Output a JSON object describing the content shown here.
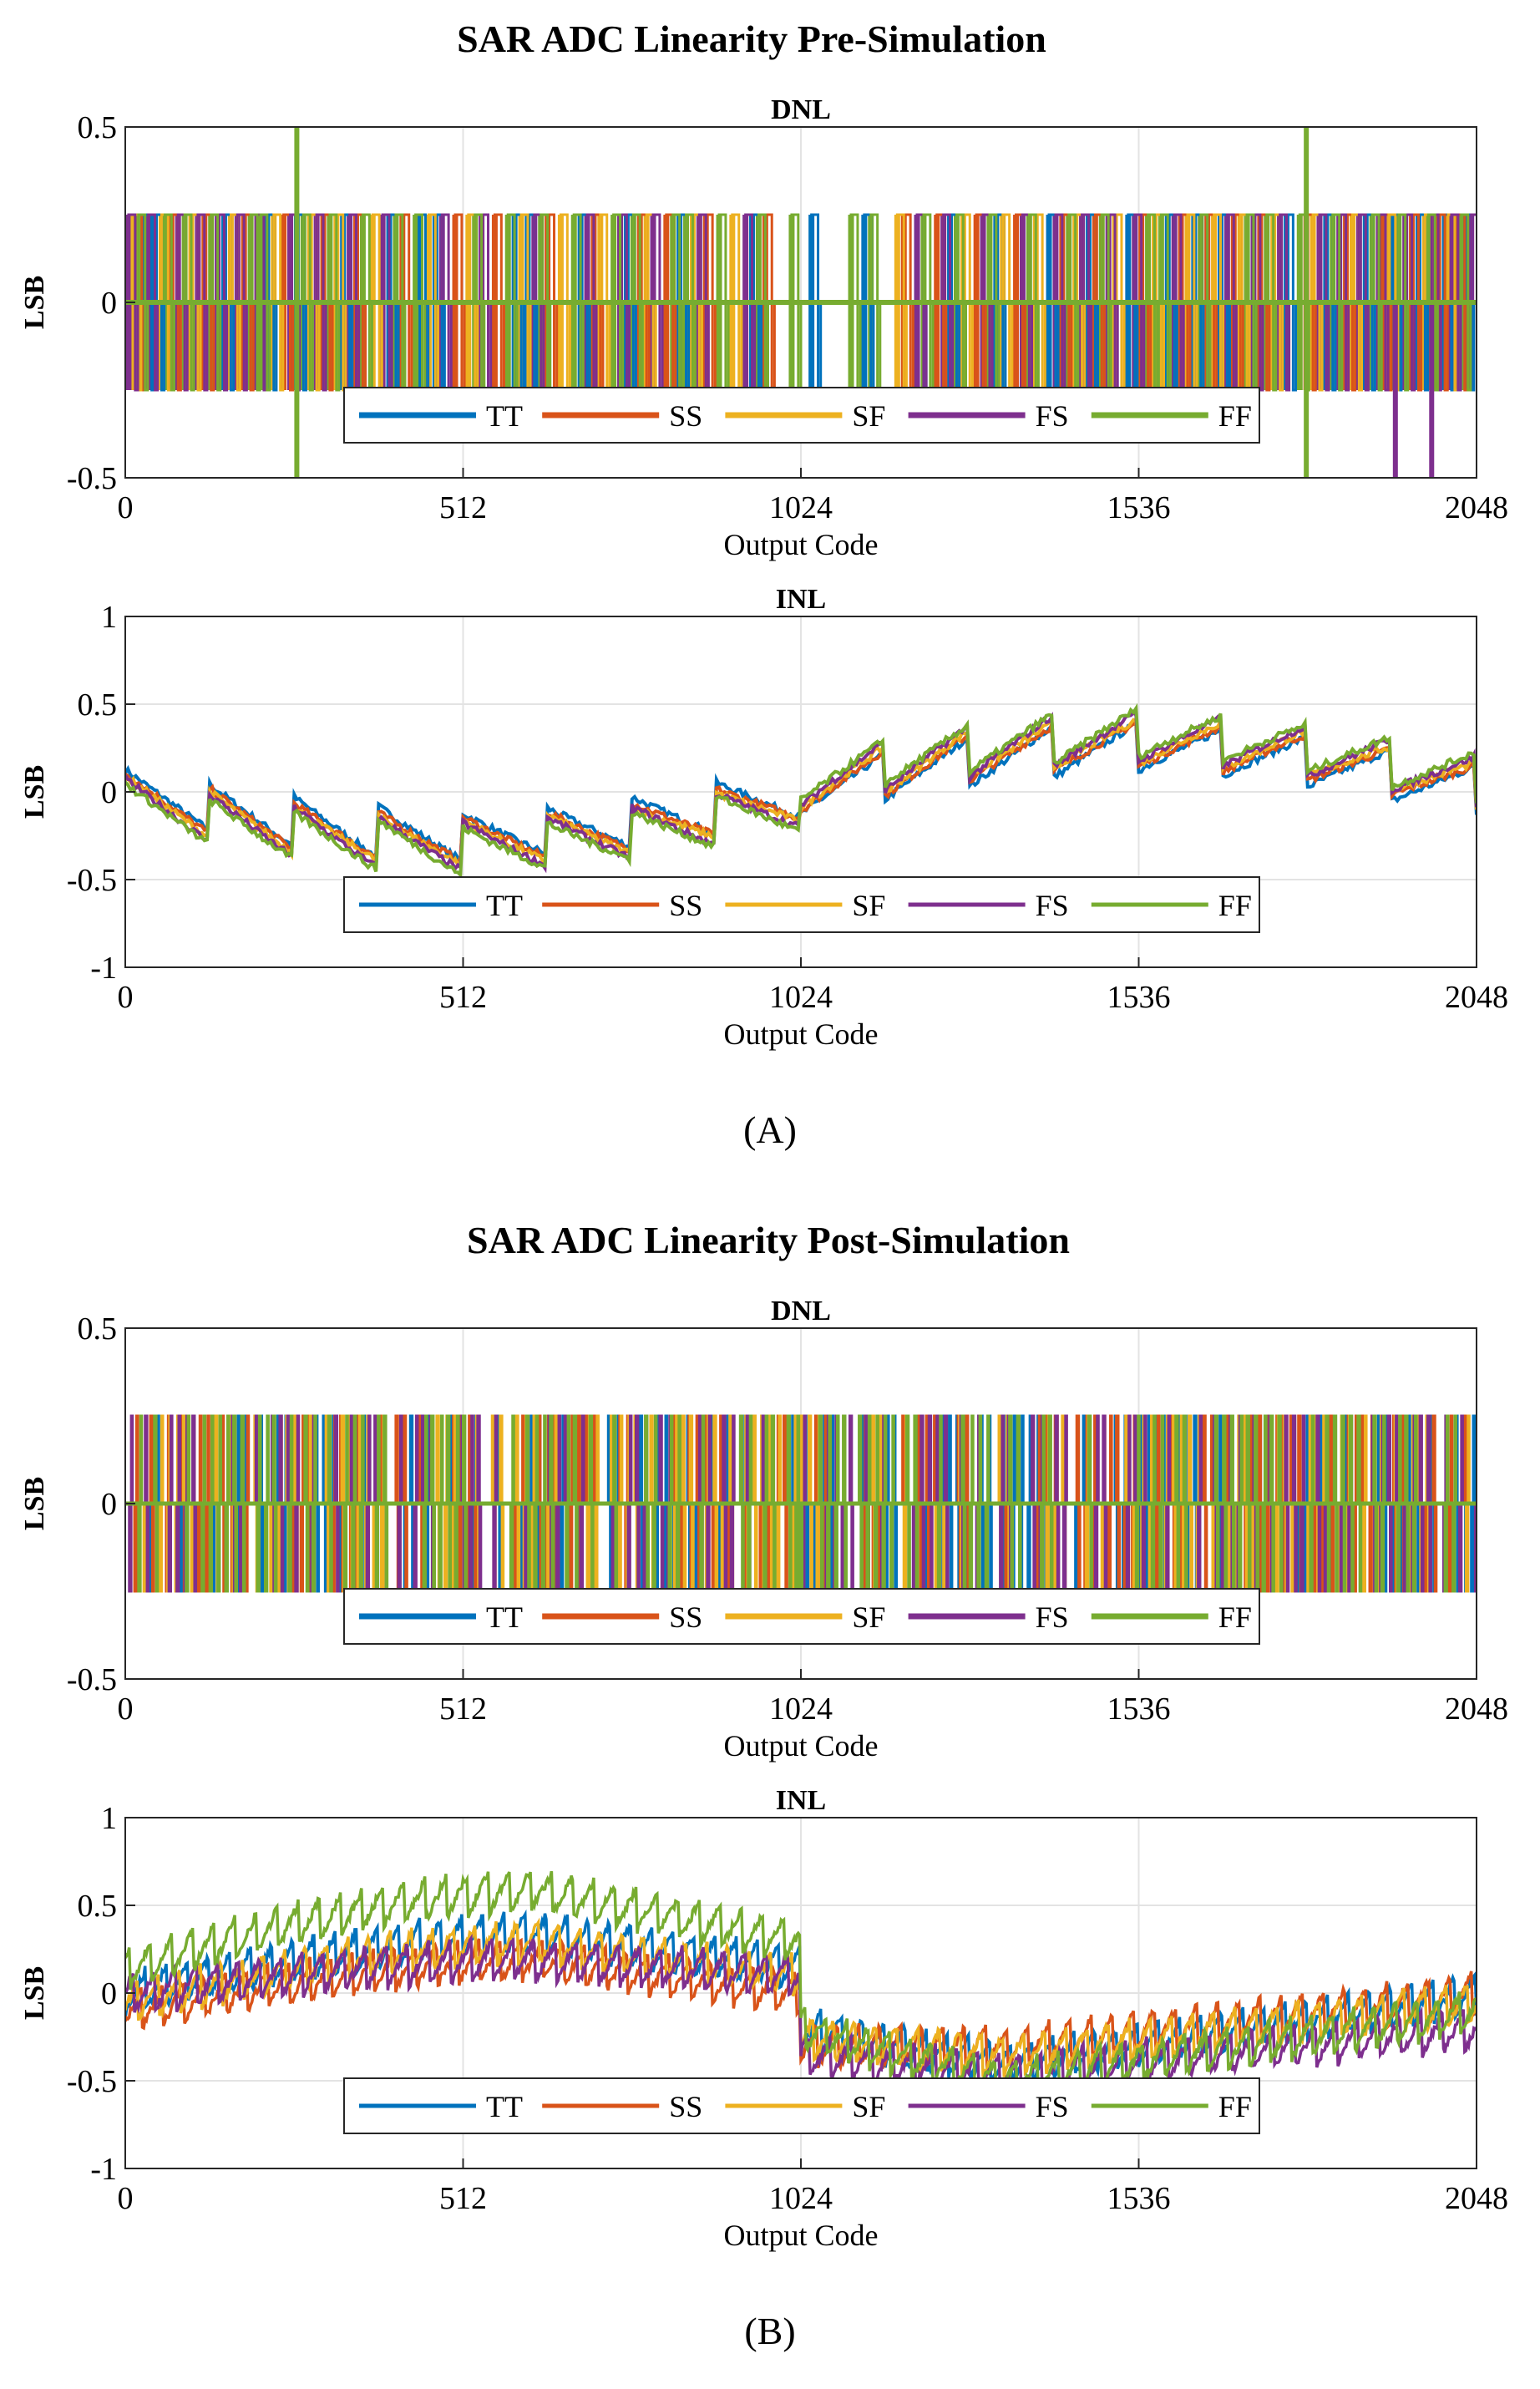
{
  "figure": {
    "panel_labels": [
      "(A)",
      "(B)"
    ],
    "tick_x": [
      "0",
      "512",
      "1024",
      "1536",
      "2048"
    ],
    "tick_dnl": [
      "0.5",
      "0",
      "-0.5"
    ],
    "tick_inl": [
      "1",
      "0.5",
      "0",
      "-0.5",
      "-1"
    ]
  },
  "chart_data": [
    {
      "type": "line",
      "suptitle": "SAR ADC Linearity Pre-Simulation",
      "title": "DNL",
      "xlabel": "Output Code",
      "ylabel": "LSB",
      "xlim": [
        0,
        2048
      ],
      "ylim": [
        -0.5,
        0.5
      ],
      "xticks": [
        0,
        512,
        1024,
        1536,
        2048
      ],
      "yticks": [
        -0.5,
        0,
        0.5
      ],
      "grid": true,
      "legend": "bottom-center",
      "series": [
        {
          "name": "TT",
          "color": "#0072BD",
          "codes": [
            30,
            45,
            150,
            215,
            260,
            330,
            400,
            445,
            470,
            590,
            610,
            690,
            760,
            840,
            950,
            1040,
            1120,
            1200,
            1250,
            1320,
            1400,
            1460,
            1520,
            1580,
            1620,
            1660,
            1700,
            1760,
            1820,
            1880,
            1920,
            1960,
            2000,
            2030
          ]
        },
        {
          "name": "SS",
          "color": "#D95319",
          "codes": [
            15,
            70,
            120,
            180,
            240,
            300,
            350,
            420,
            500,
            560,
            640,
            710,
            780,
            820,
            880,
            970,
            1180,
            1230,
            1290,
            1350,
            1420,
            1470,
            1540,
            1600,
            1640,
            1680,
            1720,
            1790,
            1850,
            1905,
            1950,
            1990,
            2020
          ]
        },
        {
          "name": "SF",
          "color": "#EDB120",
          "codes": [
            10,
            55,
            100,
            160,
            225,
            280,
            320,
            375,
            460,
            520,
            600,
            660,
            720,
            790,
            860,
            920,
            1170,
            1270,
            1330,
            1380,
            1440,
            1500,
            1560,
            1610,
            1650,
            1690,
            1740,
            1800,
            1860,
            1915,
            1970,
            2005
          ]
        },
        {
          "name": "FS",
          "color": "#7E2F8E",
          "codes": [
            5,
            35,
            80,
            110,
            140,
            170,
            200,
            250,
            290,
            340,
            390,
            480,
            540,
            620,
            700,
            750,
            800,
            870,
            940,
            1200,
            1240,
            1300,
            1360,
            1410,
            1450,
            1490,
            1530,
            1590,
            1630,
            1670,
            1710,
            1750,
            1810,
            1840,
            1870,
            1900,
            1940,
            1980,
            2010,
            2040
          ]
        },
        {
          "name": "FF",
          "color": "#77AC30",
          "codes": [
            20,
            60,
            90,
            130,
            190,
            205,
            270,
            310,
            360,
            410,
            440,
            530,
            580,
            630,
            680,
            740,
            770,
            830,
            850,
            900,
            960,
            1010,
            1100,
            1130,
            1210,
            1260,
            1310,
            1370,
            1430,
            1480,
            1550,
            1570,
            1630,
            1700,
            1730,
            1780,
            1830,
            1890,
            1930,
            1975,
            2025
          ]
        },
        {
          "name": "spikes",
          "points": [
            [
              260,
              0.5,
              "#77AC30"
            ],
            [
              260,
              -0.5,
              "#77AC30"
            ],
            [
              1790,
              0.5,
              "#77AC30"
            ],
            [
              1790,
              -0.5,
              "#77AC30"
            ],
            [
              1925,
              -0.5,
              "#7E2F8E"
            ],
            [
              1980,
              -0.5,
              "#7E2F8E"
            ]
          ]
        }
      ],
      "amplitude": 0.25
    },
    {
      "type": "line",
      "title": "INL",
      "xlabel": "Output Code",
      "ylabel": "LSB",
      "xlim": [
        0,
        2048
      ],
      "ylim": [
        -1,
        1
      ],
      "xticks": [
        0,
        512,
        1024,
        1536,
        2048
      ],
      "yticks": [
        -1,
        -0.5,
        0,
        0.5,
        1
      ],
      "grid": true,
      "legend": "bottom-center",
      "series": [
        {
          "name": "TT",
          "color": "#0072BD",
          "period": 128,
          "drops": [
            0.1,
            0.3,
            -0.45,
            0.45
          ]
        },
        {
          "name": "SS",
          "color": "#D95319",
          "period": 128,
          "drops": [
            0.1,
            0.25,
            -0.2,
            0.2
          ]
        },
        {
          "name": "SF",
          "color": "#EDB120",
          "period": 128,
          "drops": [
            0.15,
            0.3,
            -0.1,
            0.15
          ]
        },
        {
          "name": "FS",
          "color": "#7E2F8E",
          "period": 128,
          "drops": [
            0.25,
            0.4,
            -0.5,
            0.4
          ]
        },
        {
          "name": "FF",
          "color": "#77AC30",
          "period": 128,
          "drops": [
            0.1,
            0.2,
            -0.35,
            0.5
          ]
        }
      ]
    },
    {
      "type": "line",
      "suptitle": "SAR ADC Linearity Post-Simulation",
      "title": "DNL",
      "xlabel": "Output Code",
      "ylabel": "LSB",
      "xlim": [
        0,
        2048
      ],
      "ylim": [
        -0.5,
        0.5
      ],
      "xticks": [
        0,
        512,
        1024,
        1536,
        2048
      ],
      "yticks": [
        -0.5,
        0,
        0.5
      ],
      "grid": true,
      "legend": "bottom-center",
      "series": [
        {
          "name": "TT",
          "color": "#0072BD"
        },
        {
          "name": "SS",
          "color": "#D95319"
        },
        {
          "name": "SF",
          "color": "#EDB120"
        },
        {
          "name": "FS",
          "color": "#7E2F8E"
        },
        {
          "name": "FF",
          "color": "#77AC30"
        }
      ],
      "amplitude": 0.25,
      "dense_step": 12,
      "spike": [
        1024,
        -0.35,
        "#77AC30"
      ]
    },
    {
      "type": "line",
      "title": "INL",
      "xlabel": "Output Code",
      "ylabel": "LSB",
      "xlim": [
        0,
        2048
      ],
      "ylim": [
        -1,
        1
      ],
      "xticks": [
        0,
        512,
        1024,
        1536,
        2048
      ],
      "yticks": [
        -1,
        -0.5,
        0,
        0.5,
        1
      ],
      "grid": true,
      "legend": "bottom-center",
      "series": [
        {
          "name": "TT",
          "color": "#0072BD",
          "left_start": 0.0,
          "left_peak": 0.35,
          "left_end": 0.15,
          "right_start": -0.2,
          "right_mid": -0.4,
          "right_end": 0.0
        },
        {
          "name": "SS",
          "color": "#D95319",
          "left_start": -0.1,
          "left_peak": 0.2,
          "left_end": 0.0,
          "right_start": -0.3,
          "right_mid": -0.3,
          "right_end": 0.0
        },
        {
          "name": "SF",
          "color": "#EDB120",
          "left_start": -0.05,
          "left_peak": 0.3,
          "left_end": 0.1,
          "right_start": -0.25,
          "right_mid": -0.35,
          "right_end": -0.05
        },
        {
          "name": "FS",
          "color": "#7E2F8E",
          "left_start": 0.0,
          "left_peak": 0.2,
          "left_end": 0.1,
          "right_start": -0.35,
          "right_mid": -0.45,
          "right_end": -0.2
        },
        {
          "name": "FF",
          "color": "#77AC30",
          "left_start": 0.15,
          "left_peak": 0.6,
          "left_end": 0.3,
          "right_start": -0.2,
          "right_mid": -0.5,
          "right_end": -0.1
        }
      ],
      "ripple": 0.12,
      "ripple_period": 32
    }
  ]
}
